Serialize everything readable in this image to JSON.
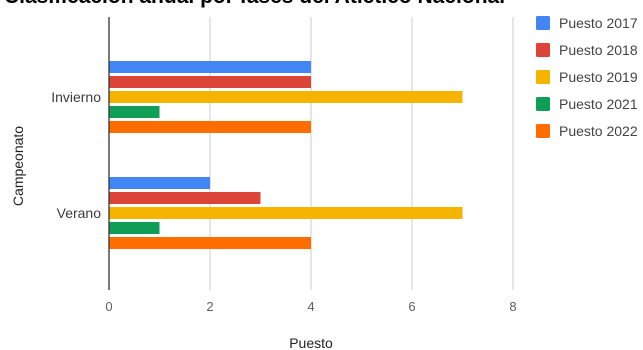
{
  "chart_data": {
    "type": "bar",
    "orientation": "horizontal",
    "title": "Clasificación anual por fases del Atlético Nacional",
    "xlabel": "Puesto",
    "ylabel": "Campeonato",
    "categories": [
      "Invierno",
      "Verano"
    ],
    "xlim": [
      0,
      8
    ],
    "xticks": [
      0,
      2,
      4,
      6,
      8
    ],
    "grid": true,
    "legend_position": "right",
    "series": [
      {
        "name": "Puesto 2017",
        "color": "#4285F4",
        "values": [
          4,
          2
        ]
      },
      {
        "name": "Puesto 2018",
        "color": "#DB4437",
        "values": [
          4,
          3
        ]
      },
      {
        "name": "Puesto 2019",
        "color": "#F4B400",
        "values": [
          7,
          7
        ]
      },
      {
        "name": "Puesto 2021",
        "color": "#0F9D58",
        "values": [
          1,
          1
        ]
      },
      {
        "name": "Puesto 2022",
        "color": "#FF6D01",
        "values": [
          4,
          4
        ]
      }
    ]
  }
}
